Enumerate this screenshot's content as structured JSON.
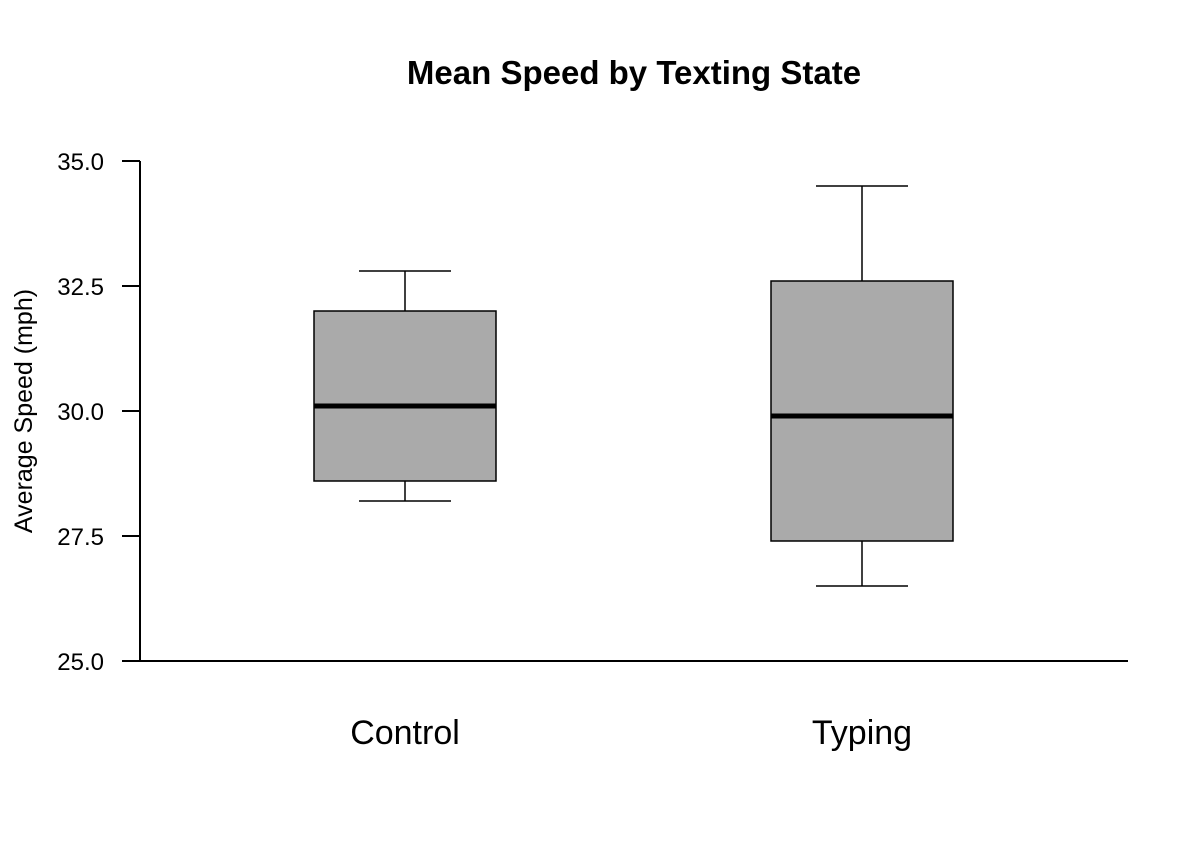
{
  "chart_data": {
    "type": "box",
    "title": "Mean Speed by Texting State",
    "xlabel": "",
    "ylabel": "Average Speed (mph)",
    "ylim": [
      25.0,
      35.0
    ],
    "yticks": [
      25.0,
      27.5,
      30.0,
      32.5,
      35.0
    ],
    "ytick_labels": [
      "25.0",
      "27.5",
      "30.0",
      "32.5",
      "35.0"
    ],
    "categories": [
      "Control",
      "Typing"
    ],
    "boxes": [
      {
        "category": "Control",
        "whisker_low": 28.2,
        "q1": 28.6,
        "median": 30.1,
        "q3": 32.0,
        "whisker_high": 32.8
      },
      {
        "category": "Typing",
        "whisker_low": 26.5,
        "q1": 27.4,
        "median": 29.9,
        "q3": 32.6,
        "whisker_high": 34.5
      }
    ],
    "grid": false,
    "colors": {
      "box_fill": "#aaaaaa",
      "line": "#000000",
      "background": "#ffffff"
    }
  }
}
